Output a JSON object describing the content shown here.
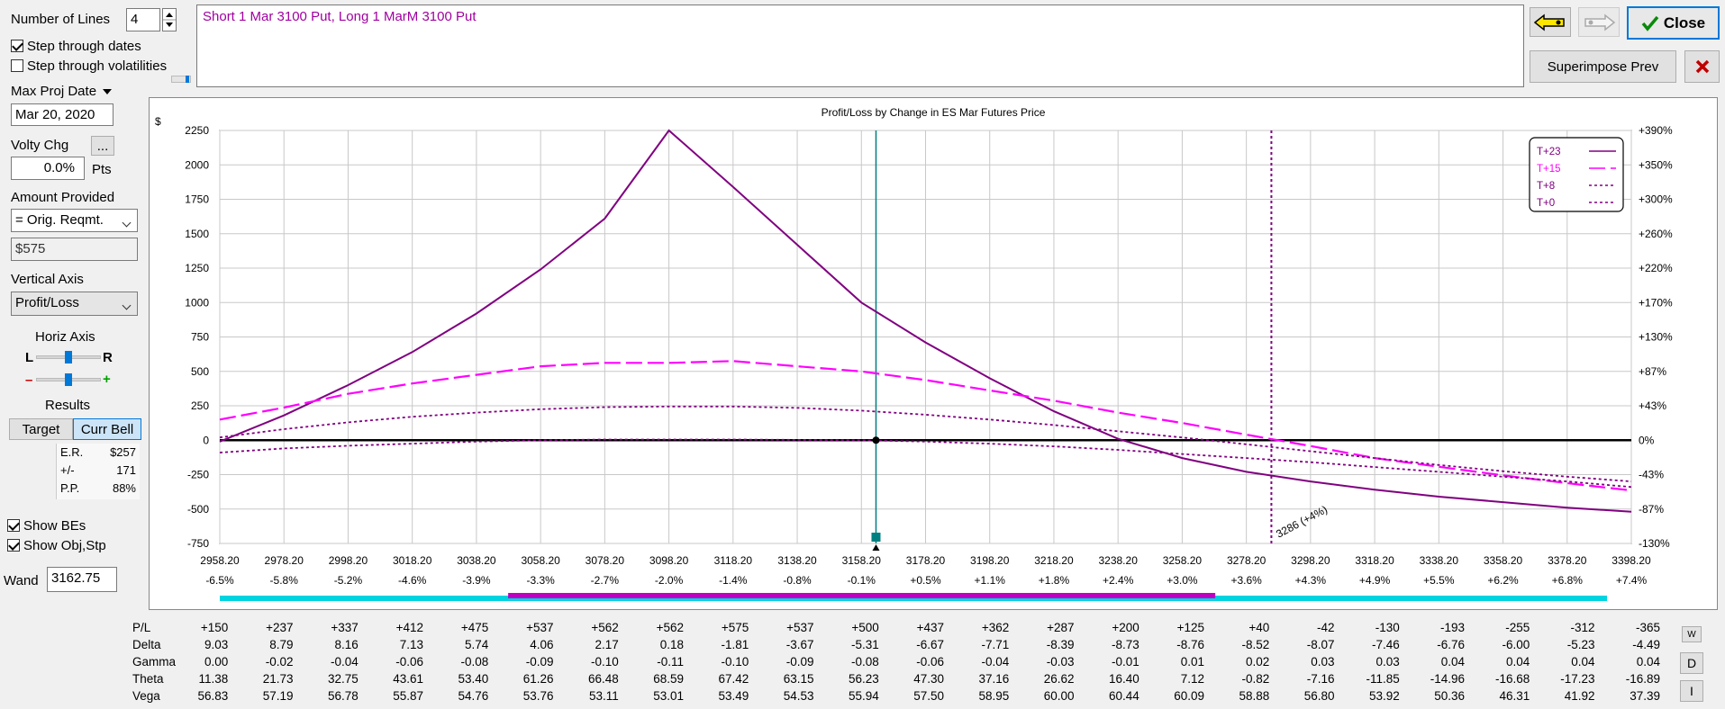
{
  "left_panel": {
    "num_lines_label": "Number of Lines",
    "num_lines_value": "4",
    "step_dates_label": "Step through dates",
    "step_dates_checked": true,
    "step_vols_label": "Step through volatilities",
    "step_vols_checked": false,
    "max_proj_date_label": "Max Proj Date",
    "max_proj_date_value": "Mar 20, 2020",
    "volty_chg_label": "Volty Chg",
    "volty_more_label": "...",
    "volty_value": "0.0%",
    "volty_unit": "Pts",
    "amount_provided_label": "Amount Provided",
    "amount_provided_select": "= Orig. Reqmt.",
    "amount_value": "$575",
    "vertical_axis_label": "Vertical Axis",
    "vertical_axis_select": "Profit/Loss",
    "horiz_axis_label": "Horiz Axis",
    "horiz_l": "L",
    "horiz_r": "R",
    "zoom_minus": "–",
    "zoom_plus": "+",
    "results_label": "Results",
    "target_button": "Target",
    "curr_bell_button": "Curr Bell",
    "er_label": "E.R.",
    "er_value": "$257",
    "pm_label": "+/-",
    "pm_value": "171",
    "pp_label": "P.P.",
    "pp_value": "88%",
    "show_bes_label": "Show BEs",
    "show_bes_checked": true,
    "show_obj_label": "Show Obj,Stp",
    "show_obj_checked": true,
    "wand_label": "Wand",
    "wand_value": "3162.75"
  },
  "description_text": "Short 1 Mar 3100 Put, Long 1 MarM 3100 Put",
  "toolbar": {
    "back_icon": "left-arrow-icon",
    "forward_icon": "right-arrow-icon",
    "close_label": "Close",
    "superimpose_label": "Superimpose Prev",
    "delete_icon": "x-icon"
  },
  "chart_data": {
    "type": "line",
    "title": "Profit/Loss by Change in ES Mar Futures Price",
    "ylabel": "$",
    "x_ticks": [
      "2958.20",
      "2978.20",
      "2998.20",
      "3018.20",
      "3038.20",
      "3058.20",
      "3078.20",
      "3098.20",
      "3118.20",
      "3138.20",
      "3158.20",
      "3178.20",
      "3198.20",
      "3218.20",
      "3238.20",
      "3258.20",
      "3278.20",
      "3298.20",
      "3318.20",
      "3338.20",
      "3358.20",
      "3378.20",
      "3398.20"
    ],
    "x_pct_ticks": [
      "-6.5%",
      "-5.8%",
      "-5.2%",
      "-4.6%",
      "-3.9%",
      "-3.3%",
      "-2.7%",
      "-2.0%",
      "-1.4%",
      "-0.8%",
      "-0.1%",
      "+0.5%",
      "+1.1%",
      "+1.8%",
      "+2.4%",
      "+3.0%",
      "+3.6%",
      "+4.3%",
      "+4.9%",
      "+5.5%",
      "+6.2%",
      "+6.8%",
      "+7.4%"
    ],
    "y_ticks": [
      "2250",
      "2000",
      "1750",
      "1500",
      "1250",
      "1000",
      "750",
      "500",
      "250",
      "0",
      "-250",
      "-500",
      "-750"
    ],
    "y_pct_ticks": [
      "+390%",
      "+350%",
      "+300%",
      "+260%",
      "+220%",
      "+170%",
      "+130%",
      "+87%",
      "+43%",
      "0%",
      "-43%",
      "-87%",
      "-130%"
    ],
    "xlim": [
      2958.2,
      3398.2
    ],
    "ylim": [
      -750,
      2250
    ],
    "grid": true,
    "legend_position": "top-right",
    "series": [
      {
        "name": "T+23",
        "color": "#800080",
        "style": "solid",
        "x": [
          2958.2,
          2978.2,
          2998.2,
          3018.2,
          3038.2,
          3058.2,
          3078.2,
          3098.2,
          3118.2,
          3138.2,
          3158.2,
          3178.2,
          3198.2,
          3218.2,
          3238.2,
          3258.2,
          3278.2,
          3298.2,
          3318.2,
          3338.2,
          3358.2,
          3378.2,
          3398.2
        ],
        "y": [
          -10,
          180,
          400,
          640,
          920,
          1240,
          1610,
          2250,
          1840,
          1420,
          1000,
          710,
          450,
          210,
          10,
          -130,
          -230,
          -300,
          -360,
          -410,
          -450,
          -490,
          -520
        ]
      },
      {
        "name": "T+15",
        "color": "#ff00ff",
        "style": "dashed",
        "x": [
          2958.2,
          2978.2,
          2998.2,
          3018.2,
          3038.2,
          3058.2,
          3078.2,
          3098.2,
          3118.2,
          3138.2,
          3158.2,
          3178.2,
          3198.2,
          3218.2,
          3238.2,
          3258.2,
          3278.2,
          3298.2,
          3318.2,
          3338.2,
          3358.2,
          3378.2,
          3398.2
        ],
        "y": [
          150,
          237,
          337,
          412,
          475,
          537,
          562,
          562,
          575,
          537,
          500,
          437,
          362,
          287,
          200,
          125,
          40,
          -42,
          -130,
          -193,
          -255,
          -312,
          -365
        ]
      },
      {
        "name": "T+8",
        "color": "#800080",
        "style": "dotted",
        "x": [
          2958.2,
          2978.2,
          2998.2,
          3018.2,
          3038.2,
          3058.2,
          3078.2,
          3098.2,
          3118.2,
          3138.2,
          3158.2,
          3178.2,
          3198.2,
          3218.2,
          3238.2,
          3258.2,
          3278.2,
          3298.2,
          3318.2,
          3338.2,
          3358.2,
          3378.2,
          3398.2
        ],
        "y": [
          20,
          80,
          130,
          170,
          200,
          225,
          240,
          245,
          245,
          235,
          215,
          185,
          150,
          110,
          65,
          20,
          -30,
          -80,
          -130,
          -180,
          -225,
          -265,
          -300
        ]
      },
      {
        "name": "T+0",
        "color": "#800080",
        "style": "dotted",
        "x": [
          2958.2,
          2978.2,
          2998.2,
          3018.2,
          3038.2,
          3058.2,
          3078.2,
          3098.2,
          3118.2,
          3138.2,
          3158.2,
          3178.2,
          3198.2,
          3218.2,
          3238.2,
          3258.2,
          3278.2,
          3298.2,
          3318.2,
          3338.2,
          3358.2,
          3378.2,
          3398.2
        ],
        "y": [
          -90,
          -60,
          -40,
          -25,
          -10,
          0,
          5,
          5,
          5,
          2,
          0,
          -10,
          -25,
          -45,
          -70,
          -100,
          -130,
          -160,
          -195,
          -230,
          -265,
          -300,
          -340
        ]
      }
    ],
    "current_price": 3162.75,
    "breakeven_price": 3286,
    "breakeven_label": "3286 (+4%)"
  },
  "greeks": {
    "rows": [
      {
        "label": "P/L",
        "values": [
          "+150",
          "+237",
          "+337",
          "+412",
          "+475",
          "+537",
          "+562",
          "+562",
          "+575",
          "+537",
          "+500",
          "+437",
          "+362",
          "+287",
          "+200",
          "+125",
          "+40",
          "-42",
          "-130",
          "-193",
          "-255",
          "-312",
          "-365"
        ]
      },
      {
        "label": "Delta",
        "values": [
          "9.03",
          "8.79",
          "8.16",
          "7.13",
          "5.74",
          "4.06",
          "2.17",
          "0.18",
          "-1.81",
          "-3.67",
          "-5.31",
          "-6.67",
          "-7.71",
          "-8.39",
          "-8.73",
          "-8.76",
          "-8.52",
          "-8.07",
          "-7.46",
          "-6.76",
          "-6.00",
          "-5.23",
          "-4.49"
        ]
      },
      {
        "label": "Gamma",
        "values": [
          "0.00",
          "-0.02",
          "-0.04",
          "-0.06",
          "-0.08",
          "-0.09",
          "-0.10",
          "-0.11",
          "-0.10",
          "-0.09",
          "-0.08",
          "-0.06",
          "-0.04",
          "-0.03",
          "-0.01",
          "0.01",
          "0.02",
          "0.03",
          "0.03",
          "0.04",
          "0.04",
          "0.04",
          "0.04"
        ]
      },
      {
        "label": "Theta",
        "values": [
          "11.38",
          "21.73",
          "32.75",
          "43.61",
          "53.40",
          "61.26",
          "66.48",
          "68.59",
          "67.42",
          "63.15",
          "56.23",
          "47.30",
          "37.16",
          "26.62",
          "16.40",
          "7.12",
          "-0.82",
          "-7.16",
          "-11.85",
          "-14.96",
          "-16.68",
          "-17.23",
          "-16.89"
        ]
      },
      {
        "label": "Vega",
        "values": [
          "56.83",
          "57.19",
          "56.78",
          "55.87",
          "54.76",
          "53.76",
          "53.11",
          "53.01",
          "53.49",
          "54.53",
          "55.94",
          "57.50",
          "58.95",
          "60.00",
          "60.44",
          "60.09",
          "58.88",
          "56.80",
          "53.92",
          "50.36",
          "46.31",
          "41.92",
          "37.39"
        ]
      }
    ],
    "side_buttons": [
      "W",
      "D",
      "I"
    ]
  },
  "colors": {
    "cyan_bar": "#00d4e0",
    "magenta_bar": "#c000c0",
    "current_line": "#008080",
    "close_border": "#0078d7"
  }
}
